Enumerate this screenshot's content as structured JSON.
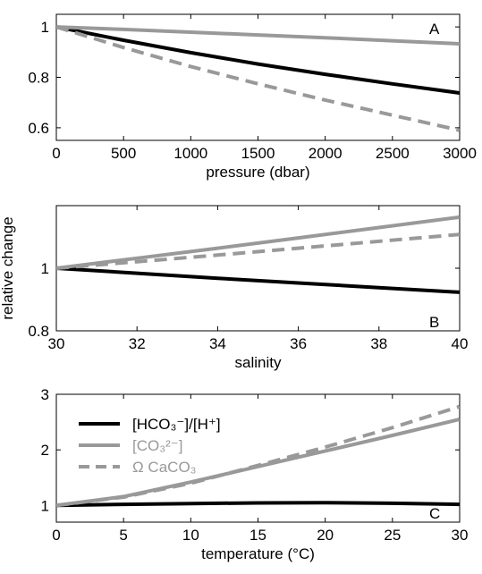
{
  "chart_data": [
    {
      "type": "line",
      "panel_label": "A",
      "xlabel": "pressure (dbar)",
      "ylabel": "",
      "xlim": [
        0,
        3000
      ],
      "ylim": [
        0.55,
        1.05
      ],
      "xticks": [
        0,
        500,
        1000,
        1500,
        2000,
        2500,
        3000
      ],
      "yticks": [
        0.6,
        0.8,
        1
      ],
      "series": [
        {
          "key": "hco3_h",
          "x": [
            0,
            500,
            1000,
            1500,
            2000,
            2500,
            3000
          ],
          "values": [
            1.0,
            0.947,
            0.898,
            0.853,
            0.812,
            0.774,
            0.738
          ]
        },
        {
          "key": "co3",
          "x": [
            0,
            500,
            1000,
            1500,
            2000,
            2500,
            3000
          ],
          "values": [
            1.0,
            0.99,
            0.979,
            0.968,
            0.957,
            0.945,
            0.933
          ]
        },
        {
          "key": "omega",
          "x": [
            0,
            500,
            1000,
            1500,
            2000,
            2500,
            3000
          ],
          "values": [
            1.0,
            0.918,
            0.843,
            0.774,
            0.71,
            0.65,
            0.59
          ]
        }
      ]
    },
    {
      "type": "line",
      "panel_label": "B",
      "xlabel": "salinity",
      "ylabel": "relative change",
      "xlim": [
        30,
        40
      ],
      "ylim": [
        0.8,
        1.2
      ],
      "xticks": [
        30,
        32,
        34,
        36,
        38,
        40
      ],
      "yticks": [
        0.8,
        1
      ],
      "series": [
        {
          "key": "hco3_h",
          "x": [
            30,
            32,
            34,
            36,
            38,
            40
          ],
          "values": [
            1.0,
            0.984,
            0.968,
            0.953,
            0.938,
            0.923
          ]
        },
        {
          "key": "co3",
          "x": [
            30,
            32,
            34,
            36,
            38,
            40
          ],
          "values": [
            1.0,
            1.032,
            1.064,
            1.097,
            1.13,
            1.163
          ]
        },
        {
          "key": "omega",
          "x": [
            30,
            32,
            34,
            36,
            38,
            40
          ],
          "values": [
            1.0,
            1.021,
            1.042,
            1.064,
            1.086,
            1.108
          ]
        }
      ]
    },
    {
      "type": "line",
      "panel_label": "C",
      "xlabel": "temperature (°C)",
      "ylabel": "",
      "xlim": [
        0,
        30
      ],
      "ylim": [
        0.7,
        3.0
      ],
      "xticks": [
        0,
        5,
        10,
        15,
        20,
        25,
        30
      ],
      "yticks": [
        1,
        2,
        3
      ],
      "legend": [
        {
          "key": "hco3_h",
          "text": "[HCO₃⁻]/[H⁺]"
        },
        {
          "key": "co3",
          "text": "[CO₃²⁻]"
        },
        {
          "key": "omega",
          "text": "Ω CaCO₃"
        }
      ],
      "series": [
        {
          "key": "hco3_h",
          "x": [
            0,
            5,
            10,
            15,
            20,
            25,
            30
          ],
          "values": [
            1.0,
            1.02,
            1.035,
            1.045,
            1.05,
            1.04,
            1.02
          ]
        },
        {
          "key": "co3",
          "x": [
            0,
            5,
            10,
            15,
            20,
            25,
            30
          ],
          "values": [
            1.0,
            1.16,
            1.42,
            1.7,
            1.98,
            2.26,
            2.55
          ]
        },
        {
          "key": "omega",
          "x": [
            0,
            5,
            10,
            15,
            20,
            25,
            30
          ],
          "values": [
            1.0,
            1.15,
            1.4,
            1.72,
            2.05,
            2.4,
            2.78
          ]
        }
      ]
    }
  ],
  "styles": {
    "hco3_h": {
      "color": "#000000",
      "dash": ""
    },
    "co3": {
      "color": "#999999",
      "dash": ""
    },
    "omega": {
      "color": "#999999",
      "dash": "14,8"
    }
  }
}
